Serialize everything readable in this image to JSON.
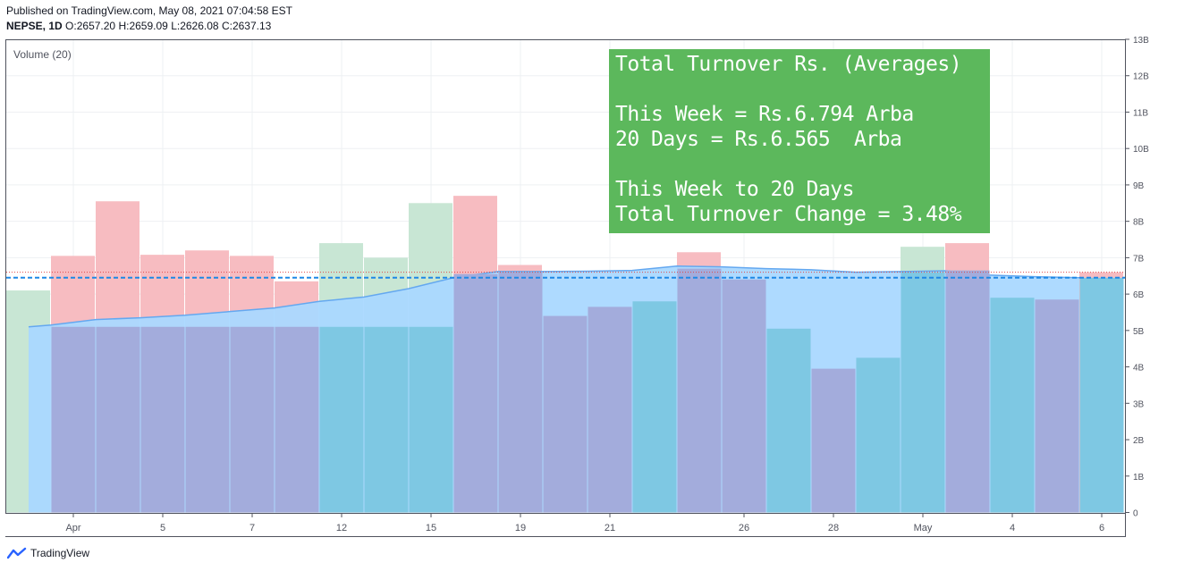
{
  "header": {
    "published": "Published on TradingView.com, May 08, 2021 07:04:58 EST",
    "symbol": "NEPSE, 1D",
    "o_label": "O:",
    "o_value": "2657.20",
    "h_label": "H:",
    "h_value": "2659.09",
    "l_label": "L:",
    "l_value": "2626.08",
    "c_label": "C:",
    "c_value": "2637.13"
  },
  "footer": {
    "brand": "TradingView"
  },
  "info_box": {
    "line1": "Total Turnover Rs. (Averages)",
    "line2": "This Week = Rs.6.794 Arba",
    "line3": "20 Days = Rs.6.565  Arba",
    "line4": "This Week to 20 Days",
    "line5": "Total Turnover Change = 3.48%"
  },
  "colors": {
    "up_volume": "#c8e6d4",
    "down_volume": "#f7bcc1",
    "turnover_bar": "#7ec8e3",
    "turnover_bar_alt": "#a3acdc",
    "ma_fill": "#aad8ff",
    "ma_line": "#64a8f0",
    "hline_red": "#e04848",
    "hline_blue": "#1e88e5",
    "info_bg": "#5cb85c"
  },
  "chart_data": {
    "type": "bar",
    "title": "Volume (20)",
    "y_unit": "B",
    "ylim": [
      0,
      13
    ],
    "y_ticks": [
      "0",
      "1B",
      "2B",
      "3B",
      "4B",
      "5B",
      "6B",
      "7B",
      "8B",
      "9B",
      "10B",
      "11B",
      "12B",
      "13B"
    ],
    "x_tick_labels": [
      {
        "index": 1,
        "label": "Apr"
      },
      {
        "index": 3,
        "label": "5"
      },
      {
        "index": 5,
        "label": "7"
      },
      {
        "index": 7,
        "label": "12"
      },
      {
        "index": 9,
        "label": "15"
      },
      {
        "index": 11,
        "label": "19"
      },
      {
        "index": 13,
        "label": "21"
      },
      {
        "index": 16,
        "label": "26"
      },
      {
        "index": 18,
        "label": "28"
      },
      {
        "index": 20,
        "label": "May"
      },
      {
        "index": 22,
        "label": "4"
      },
      {
        "index": 24,
        "label": "6"
      }
    ],
    "volume": [
      {
        "value": 6.1,
        "dir": "up"
      },
      {
        "value": 7.05,
        "dir": "down"
      },
      {
        "value": 8.55,
        "dir": "down"
      },
      {
        "value": 7.08,
        "dir": "down"
      },
      {
        "value": 7.2,
        "dir": "down"
      },
      {
        "value": 7.05,
        "dir": "down"
      },
      {
        "value": 6.35,
        "dir": "down"
      },
      {
        "value": 7.4,
        "dir": "up"
      },
      {
        "value": 7.0,
        "dir": "up"
      },
      {
        "value": 8.5,
        "dir": "up"
      },
      {
        "value": 8.7,
        "dir": "down"
      },
      {
        "value": 6.8,
        "dir": "down"
      },
      {
        "value": 5.4,
        "dir": "down"
      },
      {
        "value": 5.65,
        "dir": "down"
      },
      {
        "value": 5.8,
        "dir": "up"
      },
      {
        "value": 7.15,
        "dir": "down"
      },
      {
        "value": 6.4,
        "dir": "down"
      },
      {
        "value": 5.05,
        "dir": "up"
      },
      {
        "value": 3.95,
        "dir": "down"
      },
      {
        "value": 4.25,
        "dir": "up"
      },
      {
        "value": 7.3,
        "dir": "up"
      },
      {
        "value": 7.4,
        "dir": "down"
      },
      {
        "value": 5.9,
        "dir": "up"
      },
      {
        "value": 5.85,
        "dir": "down"
      },
      {
        "value": 6.6,
        "dir": "down"
      }
    ],
    "turnover": [
      {
        "index": 1,
        "value": 5.1,
        "tone": "alt"
      },
      {
        "index": 2,
        "value": 5.1,
        "tone": "alt"
      },
      {
        "index": 3,
        "value": 5.1,
        "tone": "alt"
      },
      {
        "index": 4,
        "value": 5.1,
        "tone": "alt"
      },
      {
        "index": 5,
        "value": 5.1,
        "tone": "alt"
      },
      {
        "index": 6,
        "value": 5.1,
        "tone": "alt"
      },
      {
        "index": 7,
        "value": 5.1,
        "tone": "main"
      },
      {
        "index": 8,
        "value": 5.1,
        "tone": "main"
      },
      {
        "index": 9,
        "value": 5.1,
        "tone": "main"
      },
      {
        "index": 10,
        "value": 6.55,
        "tone": "alt"
      },
      {
        "index": 11,
        "value": 6.6,
        "tone": "alt"
      },
      {
        "index": 12,
        "value": 5.4,
        "tone": "alt"
      },
      {
        "index": 13,
        "value": 5.65,
        "tone": "alt"
      },
      {
        "index": 14,
        "value": 5.8,
        "tone": "main"
      },
      {
        "index": 15,
        "value": 6.7,
        "tone": "alt"
      },
      {
        "index": 16,
        "value": 6.4,
        "tone": "alt"
      },
      {
        "index": 17,
        "value": 5.05,
        "tone": "main"
      },
      {
        "index": 18,
        "value": 3.95,
        "tone": "alt"
      },
      {
        "index": 19,
        "value": 4.25,
        "tone": "main"
      },
      {
        "index": 20,
        "value": 6.6,
        "tone": "main"
      },
      {
        "index": 21,
        "value": 6.65,
        "tone": "alt"
      },
      {
        "index": 22,
        "value": 5.9,
        "tone": "main"
      },
      {
        "index": 23,
        "value": 5.85,
        "tone": "alt"
      },
      {
        "index": 24,
        "value": 6.45,
        "tone": "main"
      }
    ],
    "ma_line": [
      {
        "x": 0.5,
        "y": 5.1
      },
      {
        "x": 1,
        "y": 5.15
      },
      {
        "x": 2,
        "y": 5.3
      },
      {
        "x": 3,
        "y": 5.35
      },
      {
        "x": 4,
        "y": 5.42
      },
      {
        "x": 5,
        "y": 5.52
      },
      {
        "x": 6,
        "y": 5.62
      },
      {
        "x": 7,
        "y": 5.8
      },
      {
        "x": 8,
        "y": 5.92
      },
      {
        "x": 9,
        "y": 6.15
      },
      {
        "x": 10,
        "y": 6.45
      },
      {
        "x": 11,
        "y": 6.62
      },
      {
        "x": 12,
        "y": 6.62
      },
      {
        "x": 13,
        "y": 6.63
      },
      {
        "x": 14,
        "y": 6.65
      },
      {
        "x": 15,
        "y": 6.77
      },
      {
        "x": 16,
        "y": 6.75
      },
      {
        "x": 17,
        "y": 6.7
      },
      {
        "x": 18,
        "y": 6.67
      },
      {
        "x": 19,
        "y": 6.6
      },
      {
        "x": 20,
        "y": 6.62
      },
      {
        "x": 21,
        "y": 6.64
      },
      {
        "x": 22,
        "y": 6.52
      },
      {
        "x": 23,
        "y": 6.48
      },
      {
        "x": 24,
        "y": 6.45
      }
    ],
    "hlines": [
      {
        "y": 6.6,
        "style": "dotted",
        "color": "red"
      },
      {
        "y": 6.45,
        "style": "dashed",
        "color": "blue"
      }
    ]
  }
}
